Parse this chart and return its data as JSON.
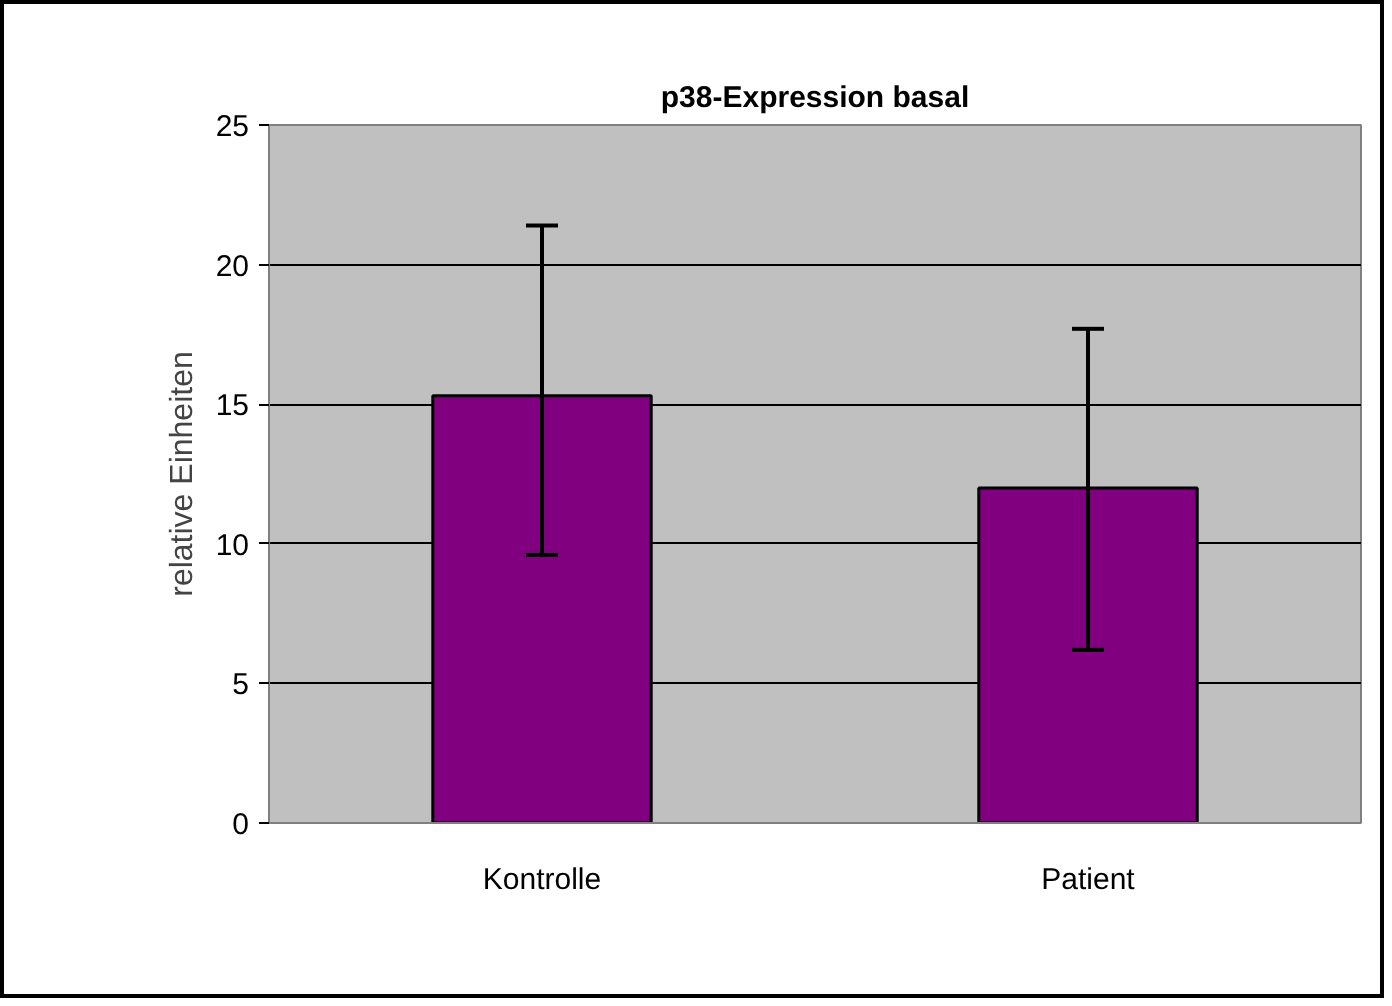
{
  "chart_data": {
    "type": "bar",
    "title": "p38-Expression basal",
    "ylabel": "relative Einheiten",
    "categories": [
      "Kontrolle",
      "Patient"
    ],
    "values": [
      15.3,
      12.0
    ],
    "errors": [
      [
        9.6,
        21.4
      ],
      [
        6.2,
        17.7
      ]
    ],
    "color": "#800080",
    "ylim": [
      0,
      25
    ],
    "yticks": [
      0,
      5,
      10,
      15,
      20,
      25
    ],
    "grid": "y"
  }
}
